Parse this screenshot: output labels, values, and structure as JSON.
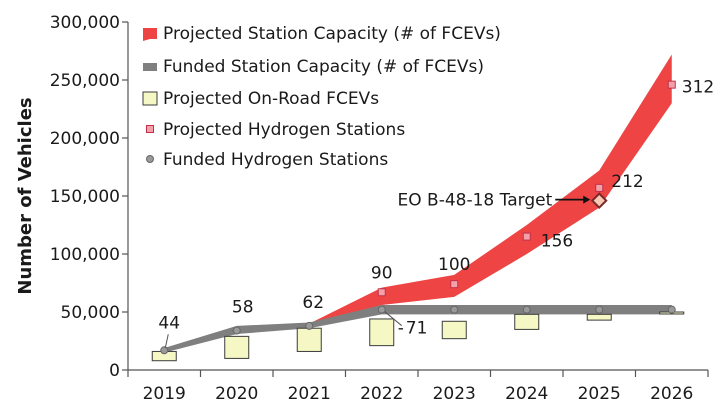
{
  "chart_data": {
    "type": "area",
    "title": "",
    "xlabel": "",
    "ylabel": "Number of Vehicles",
    "ylim": [
      0,
      300000
    ],
    "yticks": [
      "0",
      "50,000",
      "100,000",
      "150,000",
      "200,000",
      "250,000",
      "300,000"
    ],
    "ytick_values": [
      0,
      50000,
      100000,
      150000,
      200000,
      250000,
      300000
    ],
    "categories": [
      "2019",
      "2020",
      "2021",
      "2022",
      "2023",
      "2024",
      "2025",
      "2026"
    ],
    "series": [
      {
        "name": "Projected Station Capacity (# of FCEVs)",
        "type": "band",
        "color": "#ee4444",
        "x": [
          "2021",
          "2022",
          "2023",
          "2024",
          "2025",
          "2026"
        ],
        "low": [
          39000,
          56000,
          63000,
          100000,
          140000,
          230000
        ],
        "high": [
          40000,
          71000,
          82000,
          125000,
          172000,
          272000
        ]
      },
      {
        "name": "Funded Station Capacity (# of FCEVs)",
        "type": "band",
        "color": "#7f7f7f",
        "x": [
          "2019",
          "2020",
          "2021",
          "2022",
          "2023",
          "2024",
          "2025",
          "2026"
        ],
        "low": [
          15000,
          31000,
          36000,
          48000,
          48000,
          48000,
          48000,
          48000
        ],
        "high": [
          19000,
          38000,
          41000,
          56000,
          56000,
          56000,
          56000,
          56000
        ]
      },
      {
        "name": "Projected On-Road FCEVs",
        "type": "range-box",
        "color": "#f5f7c4",
        "x": [
          "2019",
          "2020",
          "2021",
          "2022",
          "2023",
          "2024",
          "2025",
          "2026"
        ],
        "low": [
          8000,
          10000,
          16000,
          21000,
          27000,
          35000,
          43000,
          49000
        ],
        "high": [
          16000,
          29000,
          36000,
          44000,
          42000,
          48000,
          48000,
          50000
        ]
      },
      {
        "name": "Projected Hydrogen Stations",
        "type": "marker",
        "color": "#f4a0a8",
        "x": [
          "2022",
          "2023",
          "2024",
          "2025",
          "2026"
        ],
        "values": [
          67000,
          74000,
          115000,
          157000,
          246000
        ],
        "labels": [
          "90",
          "100",
          "156",
          "212",
          "312"
        ]
      },
      {
        "name": "Funded Hydrogen Stations",
        "type": "marker",
        "color": "#999999",
        "x": [
          "2019",
          "2020",
          "2021",
          "2022",
          "2023",
          "2024",
          "2025",
          "2026"
        ],
        "values": [
          17000,
          34000,
          38000,
          52000,
          52000,
          52000,
          52000,
          52000
        ],
        "labels": [
          "44",
          "58",
          "62",
          "71",
          "",
          "",
          "",
          ""
        ]
      }
    ],
    "annotations": [
      {
        "text": "EO B-48-18 Target",
        "x": "2025",
        "y": 146000,
        "marker": "diamond"
      }
    ]
  }
}
